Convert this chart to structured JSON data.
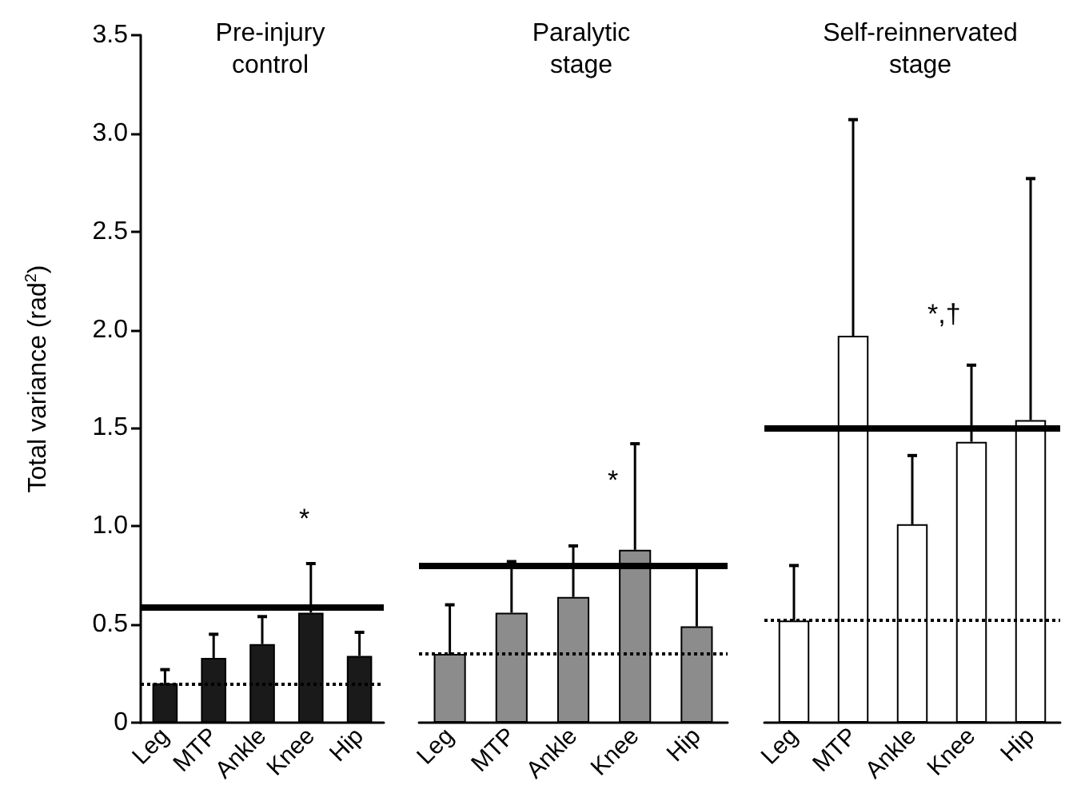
{
  "chart_data": [
    {
      "type": "bar",
      "title": "Pre-injury\ncontrol",
      "ylabel": "Total variance (rad$^{2}$)",
      "categories": [
        "Leg",
        "MTP",
        "Ankle",
        "Knee",
        "Hip"
      ],
      "series": [
        {
          "color": "#1a1a1a",
          "values": [
            0.2,
            0.33,
            0.4,
            0.56,
            0.34
          ],
          "errors": [
            [
              0.2,
              0.27
            ],
            [
              0.33,
              0.45
            ],
            [
              0.4,
              0.54
            ],
            [
              0.56,
              0.81
            ],
            [
              0.34,
              0.46
            ]
          ]
        }
      ],
      "ylim": [
        0,
        3.5
      ],
      "yticks": [
        0,
        0.5,
        {
          "value": 1,
          "label": "1.0"
        },
        1.5,
        {
          "value": 2,
          "label": "2.0"
        },
        2.5,
        {
          "value": 3,
          "label": "3.0"
        },
        3.5
      ],
      "ref_lines": [
        {
          "axis": "y",
          "value": 0.59,
          "color": "#000000",
          "line_style": "solid"
        },
        {
          "axis": "y",
          "value": 0.2,
          "color": "#000000",
          "line_style": "dotted"
        }
      ],
      "annotations": [
        "*"
      ]
    },
    {
      "type": "bar",
      "title": "Paralytic\nstage",
      "categories": [
        "Leg",
        "MTP",
        "Ankle",
        "Knee",
        "Hip"
      ],
      "series": [
        {
          "color": "#8c8c8c",
          "values": [
            0.35,
            0.56,
            0.64,
            0.88,
            0.49
          ],
          "errors": [
            [
              0.35,
              0.6
            ],
            [
              0.56,
              0.82
            ],
            [
              0.64,
              0.9
            ],
            [
              0.88,
              1.42
            ],
            [
              0.49,
              0.8
            ]
          ]
        }
      ],
      "ylim": [
        0,
        3.5
      ],
      "tick_labels": "x",
      "ref_lines": [
        {
          "axis": "y",
          "value": 0.8,
          "color": "#000000",
          "line_style": "solid"
        },
        {
          "axis": "y",
          "value": 0.35,
          "color": "#000000",
          "line_style": "dotted"
        }
      ],
      "annotations": [
        "*"
      ]
    },
    {
      "type": "bar",
      "title": "Self-reinnervated\nstage",
      "categories": [
        "Leg",
        "MTP",
        "Ankle",
        "Knee",
        "Hip"
      ],
      "series": [
        {
          "color": "#ffffff",
          "values": [
            0.52,
            1.97,
            1.01,
            1.43,
            1.54
          ],
          "errors": [
            [
              0.52,
              0.8
            ],
            [
              1.97,
              3.07
            ],
            [
              1.01,
              1.36
            ],
            [
              1.43,
              1.82
            ],
            [
              1.54,
              2.77
            ]
          ]
        }
      ],
      "ylim": [
        0,
        3.5
      ],
      "tick_labels": "x",
      "ref_lines": [
        {
          "axis": "y",
          "value": 1.5,
          "color": "#000000",
          "line_style": "solid"
        },
        {
          "axis": "y",
          "value": 0.52,
          "color": "#000000",
          "line_style": "dotted"
        }
      ],
      "annotations": [
        "*,†"
      ]
    }
  ]
}
